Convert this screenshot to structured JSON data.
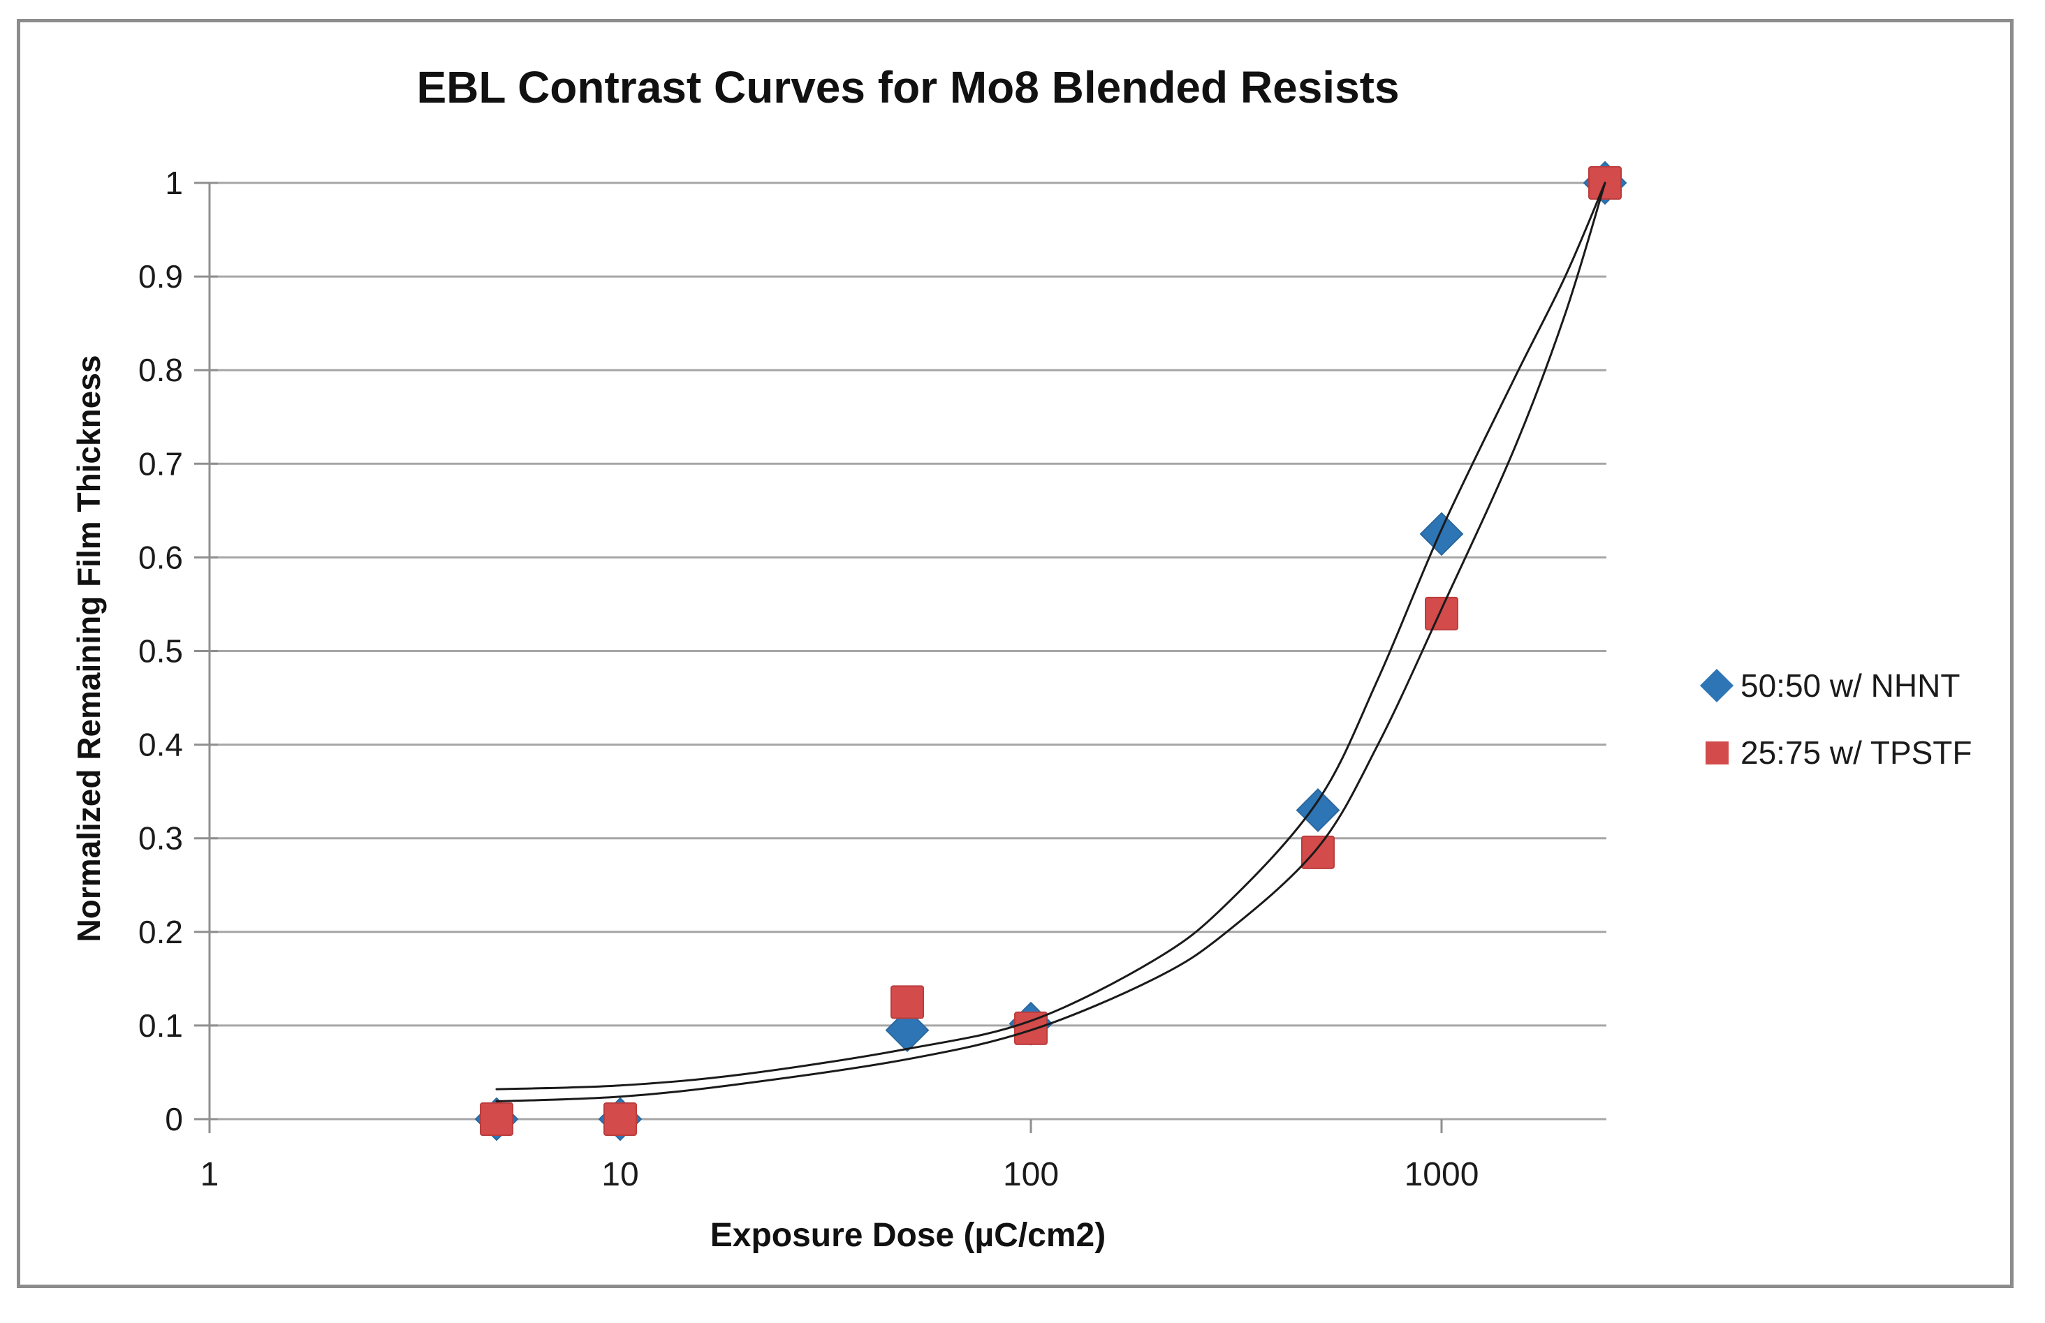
{
  "figure": {
    "background": "#FFFFFF",
    "border_color": "#8C8C8C"
  },
  "chart_data": {
    "type": "scatter",
    "title": "EBL Contrast Curves for Mo8 Blended Resists",
    "xlabel": "Exposure Dose (µC/cm2)",
    "ylabel": "Normalized Remaining Film Thickness",
    "x_scale": "log",
    "xlim": [
      1,
      2500
    ],
    "x_ticks": [
      1,
      10,
      100,
      1000
    ],
    "ylim": [
      0,
      1
    ],
    "y_ticks": [
      0,
      0.1,
      0.2,
      0.3,
      0.4,
      0.5,
      0.6,
      0.7,
      0.8,
      0.9,
      1
    ],
    "grid": "horizontal-only",
    "grid_color": "#A6A6A6",
    "axis_color": "#8F8F8F",
    "legend_position": "right",
    "series": [
      {
        "name": "50:50 w/ NHNT",
        "marker": "diamond",
        "color": "#2E75B6",
        "edge_color": "#2A689F",
        "points": [
          [
            5,
            0
          ],
          [
            10,
            0
          ],
          [
            50,
            0.095
          ],
          [
            100,
            0.102
          ],
          [
            500,
            0.33
          ],
          [
            1000,
            0.625
          ],
          [
            2500,
            1.0
          ]
        ]
      },
      {
        "name": "25:75 w/ TPSTF",
        "marker": "square",
        "color": "#D34B4B",
        "edge_color": "#BC3D3D",
        "points": [
          [
            5,
            0
          ],
          [
            10,
            0
          ],
          [
            50,
            0.125
          ],
          [
            100,
            0.097
          ],
          [
            500,
            0.285
          ],
          [
            1000,
            0.54
          ],
          [
            2500,
            1.0
          ]
        ]
      }
    ],
    "fit_curves": [
      {
        "series": "50:50 w/ NHNT",
        "color": "#1A1A1A",
        "points": [
          [
            5,
            0.032
          ],
          [
            10,
            0.036
          ],
          [
            20,
            0.048
          ],
          [
            50,
            0.075
          ],
          [
            100,
            0.105
          ],
          [
            200,
            0.17
          ],
          [
            300,
            0.23
          ],
          [
            500,
            0.34
          ],
          [
            700,
            0.47
          ],
          [
            1000,
            0.63
          ],
          [
            1500,
            0.79
          ],
          [
            2000,
            0.9
          ],
          [
            2500,
            1.0
          ]
        ]
      },
      {
        "series": "25:75 w/ TPSTF",
        "color": "#1A1A1A",
        "points": [
          [
            5,
            0.019
          ],
          [
            10,
            0.024
          ],
          [
            20,
            0.038
          ],
          [
            50,
            0.064
          ],
          [
            100,
            0.095
          ],
          [
            200,
            0.15
          ],
          [
            300,
            0.2
          ],
          [
            500,
            0.29
          ],
          [
            700,
            0.4
          ],
          [
            1000,
            0.545
          ],
          [
            1500,
            0.715
          ],
          [
            2000,
            0.86
          ],
          [
            2500,
            1.0
          ]
        ]
      }
    ]
  }
}
